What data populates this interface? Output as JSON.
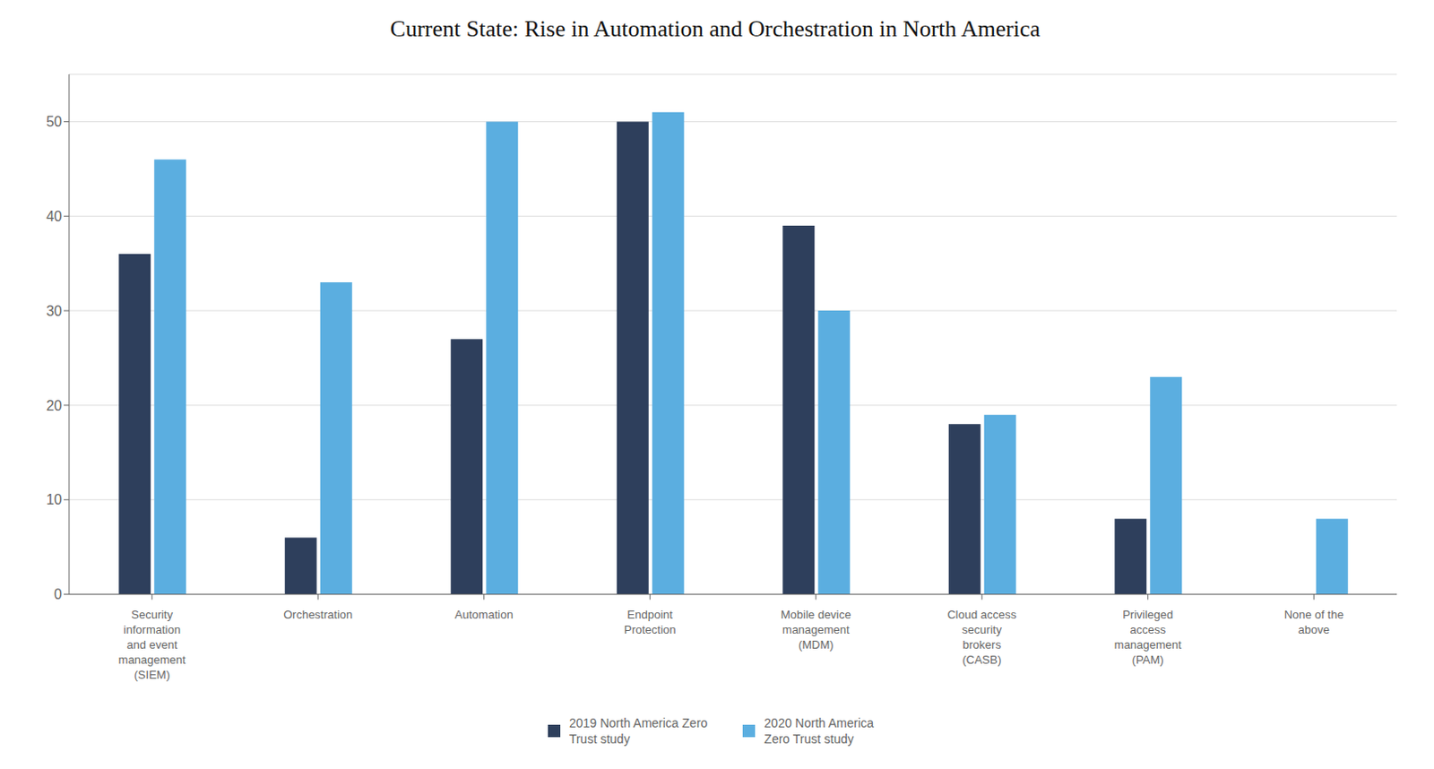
{
  "chart_data": {
    "type": "bar",
    "title": "Current State: Rise in Automation and Orchestration in North America",
    "categories": [
      "Security\ninformation\nand event\nmanagement\n(SIEM)",
      "Orchestration",
      "Automation",
      "Endpoint\nProtection",
      "Mobile device\nmanagement\n(MDM)",
      "Cloud access\nsecurity\nbrokers\n(CASB)",
      "Privileged\naccess\nmanagement\n(PAM)",
      "None of the\nabove"
    ],
    "series": [
      {
        "name": "2019 North America Zero\nTrust study",
        "color": "#2e3f5c",
        "values": [
          36,
          6,
          27,
          50,
          39,
          18,
          8,
          0
        ]
      },
      {
        "name": "2020 North America\nZero Trust study",
        "color": "#5baee0",
        "values": [
          46,
          33,
          50,
          51,
          30,
          19,
          23,
          8
        ]
      }
    ],
    "ylim": [
      0,
      55
    ],
    "yticks": [
      0,
      10,
      20,
      30,
      40,
      50
    ],
    "grid": true,
    "legend": "bottom"
  }
}
